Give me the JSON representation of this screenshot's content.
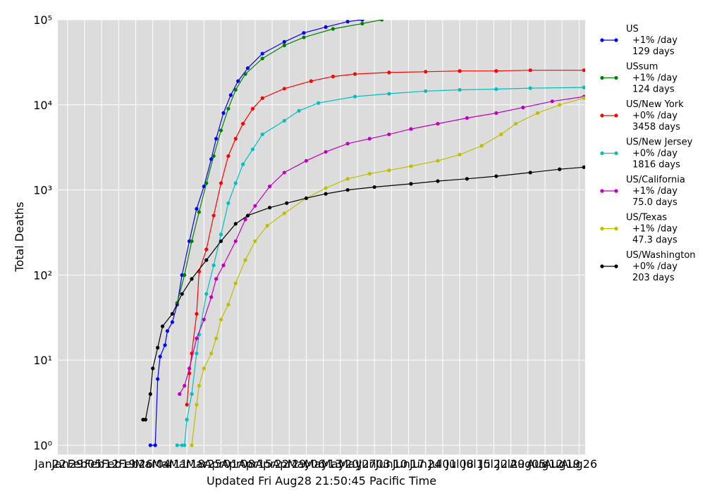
{
  "chart_data": {
    "type": "line",
    "xlabel": "Updated Fri Aug28 21:50:45 Pacific Time",
    "ylabel": "Total Deaths",
    "log_y": true,
    "grid": true,
    "legend_position": "outside-right",
    "xlim": [
      3,
      219.5
    ],
    "ylim": [
      0.78,
      100000
    ],
    "xticks": [
      {
        "value": 0,
        "label": "Jan22"
      },
      {
        "value": 7,
        "label": "Jan29"
      },
      {
        "value": 14,
        "label": "Feb05"
      },
      {
        "value": 21,
        "label": "Feb12"
      },
      {
        "value": 28,
        "label": "Feb19"
      },
      {
        "value": 35,
        "label": "Feb26"
      },
      {
        "value": 42,
        "label": "Mar04"
      },
      {
        "value": 49,
        "label": "Mar11"
      },
      {
        "value": 56,
        "label": "Mar18"
      },
      {
        "value": 63,
        "label": "Mar25"
      },
      {
        "value": 70,
        "label": "Apr01"
      },
      {
        "value": 77,
        "label": "Apr08"
      },
      {
        "value": 84,
        "label": "Apr15"
      },
      {
        "value": 91,
        "label": "Apr22"
      },
      {
        "value": 98,
        "label": "Apr29"
      },
      {
        "value": 105,
        "label": "May06"
      },
      {
        "value": 112,
        "label": "May13"
      },
      {
        "value": 119,
        "label": "May20"
      },
      {
        "value": 126,
        "label": "May27"
      },
      {
        "value": 133,
        "label": "Jun03"
      },
      {
        "value": 140,
        "label": "Jun10"
      },
      {
        "value": 147,
        "label": "Jun17"
      },
      {
        "value": 154,
        "label": "Jun24"
      },
      {
        "value": 161,
        "label": "Jul01"
      },
      {
        "value": 168,
        "label": "Jul08"
      },
      {
        "value": 175,
        "label": "Jul15"
      },
      {
        "value": 182,
        "label": "Jul22"
      },
      {
        "value": 189,
        "label": "Jul29"
      },
      {
        "value": 196,
        "label": "Aug05"
      },
      {
        "value": 203,
        "label": "Aug12"
      },
      {
        "value": 210,
        "label": "Aug19"
      },
      {
        "value": 217,
        "label": "Aug26"
      }
    ],
    "yticks": [
      {
        "value": 1,
        "label": "10⁰"
      },
      {
        "value": 10,
        "label": "10¹"
      },
      {
        "value": 100,
        "label": "10²"
      },
      {
        "value": 1000,
        "label": "10³"
      },
      {
        "value": 10000,
        "label": "10⁴"
      },
      {
        "value": 100000,
        "label": "10⁵"
      }
    ],
    "series": [
      {
        "name": "US",
        "lines": [
          "+1% /day",
          "129 days"
        ],
        "color": "#0000ff",
        "x": [
          41,
          43,
          44,
          45,
          47,
          48,
          50,
          52,
          54,
          57,
          60,
          63,
          66,
          68,
          71,
          74,
          77,
          81,
          87,
          96,
          104,
          113,
          122,
          128
        ],
        "values": [
          1,
          1,
          6,
          11,
          15,
          22,
          28,
          45,
          100,
          250,
          600,
          1100,
          2300,
          4000,
          8000,
          13000,
          19000,
          27000,
          40000,
          55000,
          70000,
          82000,
          95000,
          100000
        ]
      },
      {
        "name": "USsum",
        "lines": [
          "+1% /day",
          "124 days"
        ],
        "color": "#008000",
        "x": [
          52,
          55,
          58,
          61,
          64,
          67,
          70,
          73,
          76,
          80,
          87,
          96,
          104,
          116,
          128,
          136
        ],
        "values": [
          47,
          100,
          250,
          550,
          1200,
          2500,
          5000,
          9000,
          15000,
          23000,
          35000,
          50000,
          62000,
          78000,
          90000,
          100000
        ]
      },
      {
        "name": "US/New York",
        "lines": [
          "+0% /day",
          "3458 days"
        ],
        "color": "#ff0000",
        "x": [
          56,
          57,
          58,
          60,
          61,
          64,
          67,
          70,
          73,
          76,
          79,
          83,
          87,
          96,
          107,
          116,
          125,
          139,
          154,
          168,
          183,
          197,
          219
        ],
        "values": [
          3,
          7,
          12,
          35,
          110,
          200,
          500,
          1200,
          2500,
          4000,
          6000,
          9000,
          12000,
          15500,
          19000,
          21500,
          23000,
          24000,
          24500,
          25000,
          25000,
          25500,
          25500
        ]
      },
      {
        "name": "US/New Jersey",
        "lines": [
          "+0% /day",
          "1816 days"
        ],
        "color": "#00bfbf",
        "x": [
          52,
          54,
          55,
          56,
          58,
          60,
          61,
          64,
          67,
          70,
          73,
          76,
          79,
          83,
          87,
          96,
          102,
          110,
          125,
          139,
          154,
          168,
          183,
          197,
          219
        ],
        "values": [
          1,
          1,
          1,
          2,
          4,
          12,
          20,
          60,
          130,
          300,
          700,
          1200,
          2000,
          3000,
          4500,
          6500,
          8500,
          10500,
          12500,
          13500,
          14500,
          15000,
          15300,
          15700,
          16000
        ]
      },
      {
        "name": "US/California",
        "lines": [
          "+1% /day",
          "75.0 days"
        ],
        "color": "#bf00bf",
        "x": [
          53,
          55,
          57,
          60,
          63,
          66,
          68,
          71,
          76,
          80,
          84,
          90,
          96,
          105,
          113,
          122,
          131,
          139,
          148,
          159,
          171,
          183,
          194,
          206,
          219
        ],
        "values": [
          4,
          5,
          8,
          18,
          30,
          55,
          90,
          130,
          250,
          450,
          650,
          1100,
          1600,
          2200,
          2800,
          3500,
          4000,
          4500,
          5200,
          6000,
          7000,
          8000,
          9300,
          11000,
          12500
        ]
      },
      {
        "name": "US/Texas",
        "lines": [
          "+1% /day",
          "47.3 days"
        ],
        "color": "#bfbf00",
        "x": [
          58,
          60,
          61,
          63,
          66,
          68,
          70,
          73,
          76,
          80,
          84,
          89,
          96,
          105,
          113,
          122,
          131,
          139,
          148,
          159,
          168,
          177,
          185,
          191,
          200,
          209,
          219
        ],
        "values": [
          1,
          3,
          5,
          8,
          12,
          18,
          30,
          45,
          80,
          150,
          250,
          380,
          530,
          800,
          1050,
          1350,
          1550,
          1700,
          1900,
          2200,
          2600,
          3300,
          4500,
          6000,
          8000,
          10000,
          12000
        ]
      },
      {
        "name": "US/Washington",
        "lines": [
          "+0% /day",
          "203 days"
        ],
        "color": "#000000",
        "x": [
          38,
          39,
          41,
          42,
          44,
          46,
          50,
          54,
          58,
          64,
          70,
          76,
          81,
          90,
          97,
          105,
          113,
          122,
          133,
          148,
          159,
          171,
          183,
          197,
          209,
          219
        ],
        "values": [
          2,
          2,
          4,
          8,
          14,
          25,
          35,
          60,
          90,
          150,
          250,
          400,
          500,
          620,
          700,
          800,
          900,
          1000,
          1080,
          1180,
          1270,
          1350,
          1450,
          1600,
          1750,
          1850
        ]
      }
    ]
  }
}
